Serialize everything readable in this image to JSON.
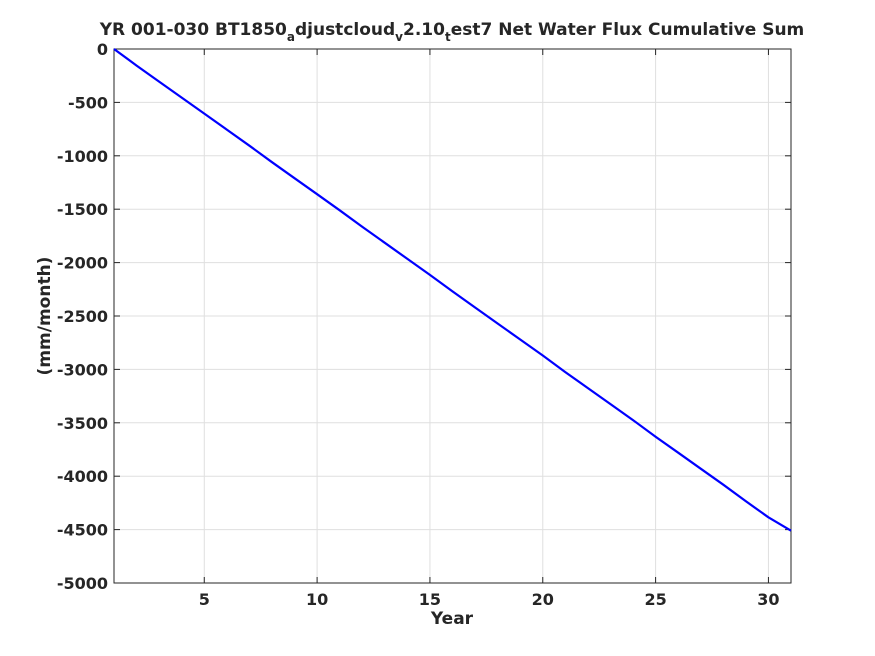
{
  "chart_data": {
    "type": "line",
    "title": {
      "p1": "YR 001-030 BT1850",
      "s1": "a",
      "p2": "djustcloud",
      "s2": "v",
      "p3": "2.10",
      "s3": "t",
      "p4": "est7 Net Water Flux Cumulative Sum"
    },
    "xlabel": "Year",
    "ylabel": "(mm/month)",
    "xlim": [
      1,
      31
    ],
    "ylim": [
      -5000,
      0
    ],
    "xticks": [
      5,
      10,
      15,
      20,
      25,
      30
    ],
    "yticks": [
      0,
      -500,
      -1000,
      -1500,
      -2000,
      -2500,
      -3000,
      -3500,
      -4000,
      -4500,
      -5000
    ],
    "grid": true,
    "line_color": "#0000ff",
    "series": [
      {
        "x": [
          1,
          2,
          3,
          4,
          5,
          6,
          7,
          8,
          9,
          10,
          11,
          12,
          13,
          14,
          15,
          16,
          17,
          18,
          19,
          20,
          21,
          22,
          23,
          24,
          25,
          26,
          27,
          28,
          29,
          30,
          31
        ],
        "values": [
          0,
          -155,
          -305,
          -455,
          -605,
          -755,
          -905,
          -1060,
          -1210,
          -1360,
          -1510,
          -1665,
          -1815,
          -1965,
          -2115,
          -2270,
          -2420,
          -2570,
          -2720,
          -2870,
          -3025,
          -3175,
          -3325,
          -3475,
          -3630,
          -3780,
          -3930,
          -4080,
          -4235,
          -4385,
          -4510
        ]
      }
    ]
  }
}
